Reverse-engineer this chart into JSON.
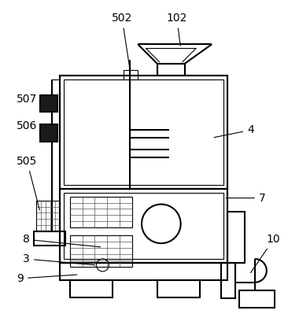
{
  "bg_color": "#ffffff",
  "line_color": "#000000",
  "lw": 1.5,
  "tlw": 0.8,
  "glw": 0.5,
  "label_fontsize": 10
}
